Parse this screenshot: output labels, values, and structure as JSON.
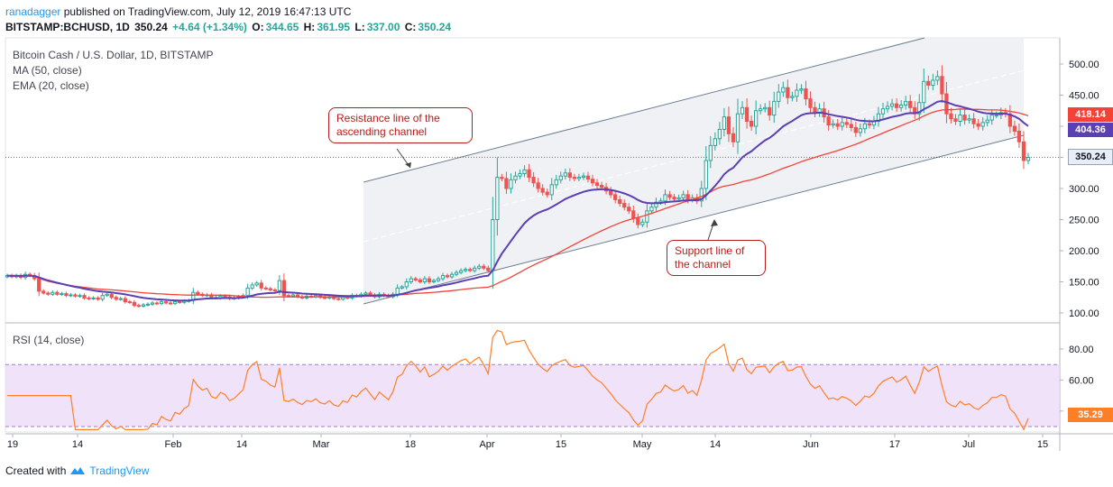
{
  "header": {
    "author": "ranadagger",
    "published_text": "published on TradingView.com, July 12, 2019 16:47:13 UTC"
  },
  "symbol": {
    "ticker": "BITSTAMP:BCHUSD, 1D",
    "last": "350.24",
    "change": "+4.64 (+1.34%)",
    "o_label": "O:",
    "o": "344.65",
    "h_label": "H:",
    "h": "361.95",
    "l_label": "L:",
    "l": "337.00",
    "c_label": "C:",
    "c": "350.24"
  },
  "legend": {
    "title": "Bitcoin Cash / U.S. Dollar, 1D, BITSTAMP",
    "ma": "MA (50, close)",
    "ema": "EMA (20, close)",
    "rsi": "RSI (14, close)"
  },
  "annotations": {
    "resistance": "Resistance line of the ascending channel",
    "support": "Support line of the channel"
  },
  "price_tags": {
    "ma": "418.14",
    "ema": "404.36",
    "last": "350.24",
    "rsi": "35.29"
  },
  "footer": {
    "created_with": "Created with",
    "brand": "TradingView"
  },
  "colors": {
    "up": "#26a69a",
    "down": "#ef5350",
    "ma": "#f44336",
    "ema": "#5b3fb5",
    "rsi": "#ff7f27",
    "rsi_band": "#e9d7f7",
    "channel": "#6b7f93",
    "accent": "#2196f3"
  },
  "chart_data": [
    {
      "type": "candlestick",
      "title": "Bitcoin Cash / U.S. Dollar, 1D, BITSTAMP",
      "x_ticks": [
        "19",
        "14",
        "Feb",
        "14",
        "Mar",
        "18",
        "Apr",
        "15",
        "May",
        "14",
        "Jun",
        "17",
        "Jul",
        "15"
      ],
      "y_ticks": [
        100,
        150,
        200,
        250,
        300,
        350,
        400,
        450,
        500
      ],
      "ylim": [
        88,
        540
      ],
      "series": [
        {
          "name": "MA (50, close)",
          "last": 418.14
        },
        {
          "name": "EMA (20, close)",
          "last": 404.36
        }
      ],
      "close_series": [
        160,
        158,
        160,
        157,
        162,
        160,
        155,
        135,
        132,
        130,
        133,
        130,
        131,
        128,
        129,
        127,
        128,
        124,
        123,
        124,
        122,
        128,
        130,
        125,
        122,
        123,
        118,
        117,
        112,
        111,
        113,
        114,
        116,
        115,
        118,
        116,
        115,
        118,
        117,
        119,
        120,
        133,
        130,
        128,
        129,
        125,
        124,
        127,
        126,
        123,
        124,
        126,
        128,
        140,
        145,
        148,
        140,
        139,
        137,
        136,
        152,
        128,
        127,
        129,
        126,
        124,
        127,
        126,
        128,
        125,
        124,
        126,
        123,
        122,
        125,
        124,
        128,
        127,
        130,
        132,
        129,
        126,
        130,
        128,
        126,
        130,
        140,
        142,
        150,
        155,
        153,
        150,
        155,
        150,
        152,
        155,
        160,
        158,
        162,
        165,
        168,
        170,
        168,
        172,
        175,
        172,
        168,
        250,
        318,
        316,
        300,
        314,
        320,
        324,
        330,
        318,
        309,
        300,
        294,
        290,
        306,
        314,
        320,
        325,
        318,
        316,
        318,
        320,
        315,
        309,
        305,
        302,
        296,
        290,
        282,
        276,
        270,
        264,
        252,
        242,
        246,
        264,
        270,
        278,
        280,
        290,
        286,
        283,
        285,
        290,
        282,
        285,
        280,
        300,
        345,
        369,
        380,
        395,
        415,
        388,
        375,
        420,
        430,
        408,
        400,
        425,
        428,
        430,
        418,
        440,
        455,
        462,
        446,
        448,
        458,
        460,
        444,
        430,
        422,
        428,
        415,
        402,
        404,
        400,
        406,
        403,
        398,
        390,
        396,
        404,
        402,
        408,
        420,
        428,
        432,
        436,
        430,
        434,
        440,
        430,
        420,
        438,
        472,
        466,
        474,
        480,
        452,
        420,
        412,
        408,
        418,
        410,
        412,
        404,
        400,
        406,
        410,
        418,
        418,
        422,
        420,
        400,
        392,
        375,
        345,
        350
      ],
      "ma_series_endpoints": {
        "start": 185,
        "end": 418
      },
      "ema_series_endpoints": {
        "start": 175,
        "end": 404
      }
    },
    {
      "type": "line",
      "title": "RSI (14, close)",
      "y_ticks": [
        40,
        60,
        80
      ],
      "band": [
        30,
        70
      ],
      "ylim": [
        28,
        92
      ],
      "last": 35.29
    }
  ]
}
